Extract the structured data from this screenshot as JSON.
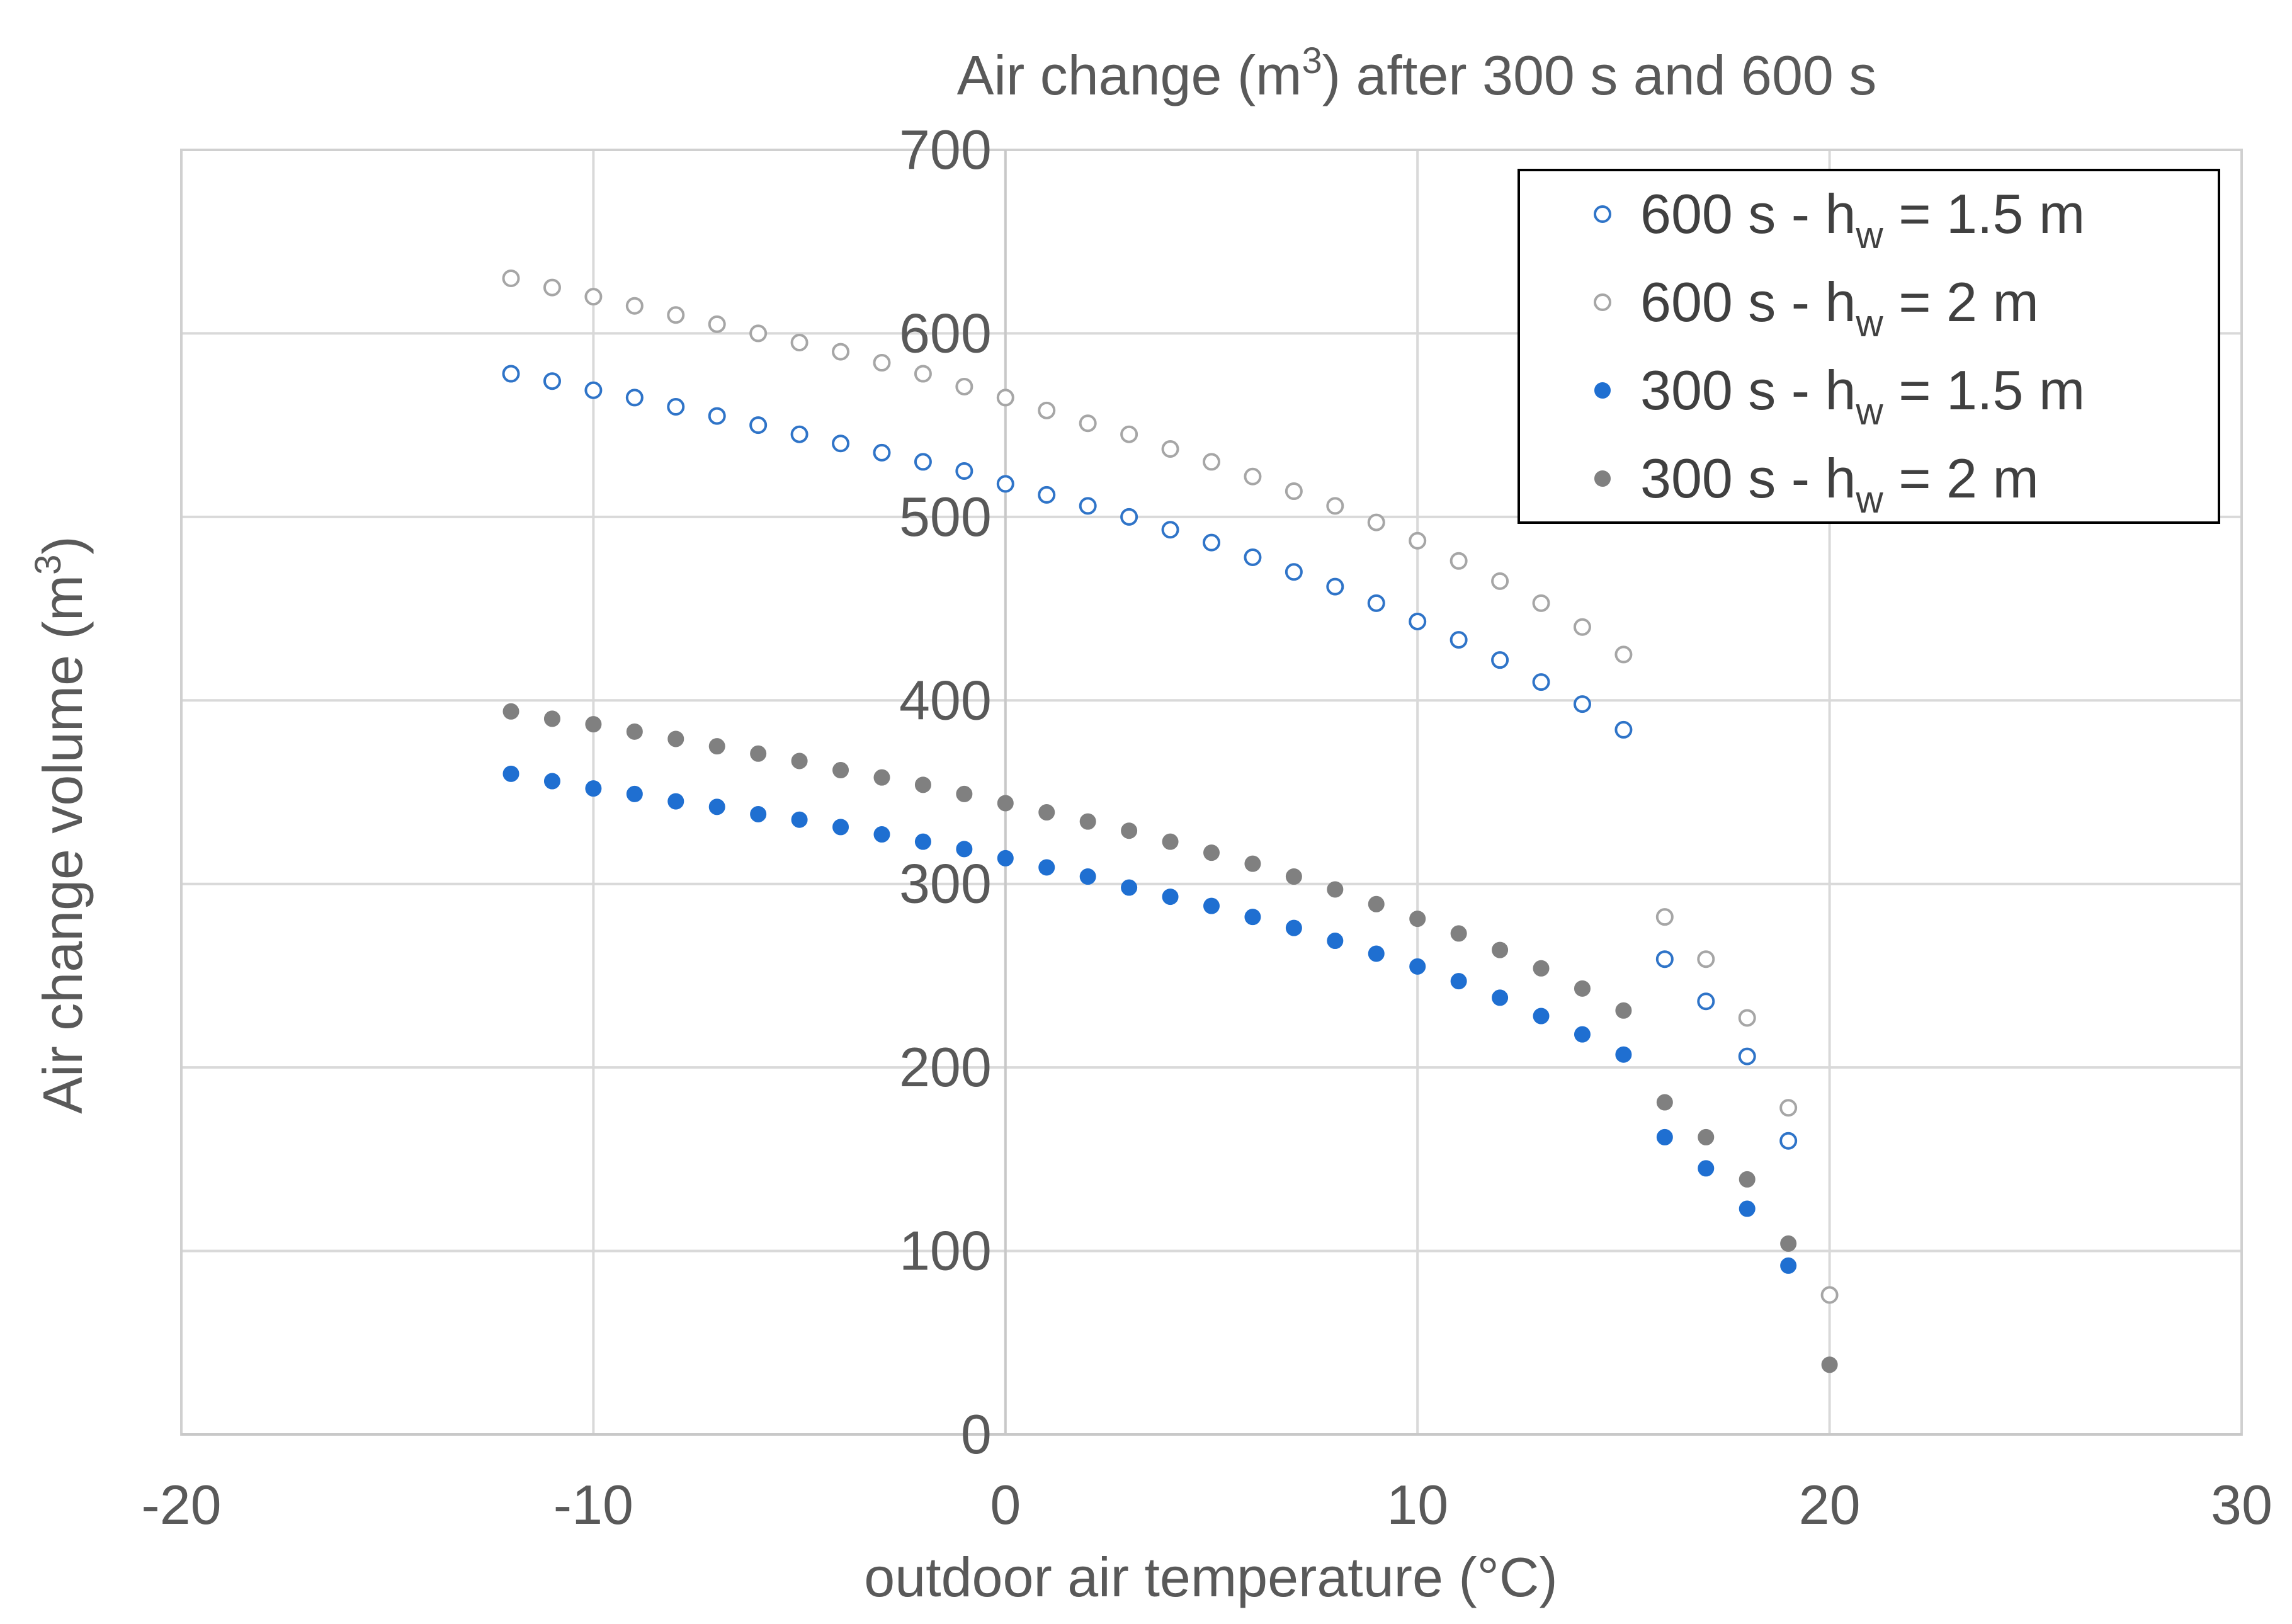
{
  "chart_data": {
    "type": "scatter",
    "title": {
      "prefix": "Air change (m",
      "superscript": "3",
      "suffix": ") after 300 s and 600 s"
    },
    "xlabel": "outdoor air temperature (°C)",
    "ylabel": {
      "prefix": "Air change volume (m",
      "superscript": "3",
      "suffix": ")"
    },
    "xlim": [
      -20,
      30
    ],
    "ylim": [
      0,
      700
    ],
    "xticks": [
      -20,
      -10,
      0,
      10,
      20,
      30
    ],
    "yticks": [
      0,
      100,
      200,
      300,
      400,
      500,
      600,
      700
    ],
    "grid": true,
    "legend_position": "top-right",
    "series": [
      {
        "name": "600 s - hw = 1.5 m",
        "label_parts": {
          "prefix": "600 s - h",
          "subscript": "w",
          "suffix": " = 1.5 m"
        },
        "marker": "open-circle",
        "color": "#2f74c8",
        "x": [
          -12,
          -11,
          -10,
          -9,
          -8,
          -7,
          -6,
          -5,
          -4,
          -3,
          -2,
          -1,
          0,
          1,
          2,
          3,
          4,
          5,
          6,
          7,
          8,
          9,
          10,
          11,
          12,
          13,
          14,
          15,
          16,
          17,
          18,
          19
        ],
        "y": [
          578,
          574,
          569,
          565,
          560,
          555,
          550,
          545,
          540,
          535,
          530,
          525,
          518,
          512,
          506,
          500,
          493,
          486,
          478,
          470,
          462,
          453,
          443,
          433,
          422,
          410,
          398,
          384,
          259,
          236,
          206,
          160
        ]
      },
      {
        "name": "600 s - hw = 2 m",
        "label_parts": {
          "prefix": "600 s - h",
          "subscript": "w",
          "suffix": " = 2 m"
        },
        "marker": "open-circle",
        "color": "#a6a6a6",
        "x": [
          -12,
          -11,
          -10,
          -9,
          -8,
          -7,
          -6,
          -5,
          -4,
          -3,
          -2,
          -1,
          0,
          1,
          2,
          3,
          4,
          5,
          6,
          7,
          8,
          9,
          10,
          11,
          12,
          13,
          14,
          15,
          16,
          17,
          18,
          19,
          20
        ],
        "y": [
          630,
          625,
          620,
          615,
          610,
          605,
          600,
          595,
          590,
          584,
          578,
          571,
          565,
          558,
          551,
          545,
          537,
          530,
          522,
          514,
          506,
          497,
          487,
          476,
          465,
          453,
          440,
          425,
          282,
          259,
          227,
          178,
          76
        ]
      },
      {
        "name": "300 s - hw = 1.5 m",
        "label_parts": {
          "prefix": "300 s - h",
          "subscript": "w",
          "suffix": " = 1.5 m"
        },
        "marker": "filled-circle",
        "color": "#1f6fd1",
        "x": [
          -12,
          -11,
          -10,
          -9,
          -8,
          -7,
          -6,
          -5,
          -4,
          -3,
          -2,
          -1,
          0,
          1,
          2,
          3,
          4,
          5,
          6,
          7,
          8,
          9,
          10,
          11,
          12,
          13,
          14,
          15,
          16,
          17,
          18,
          19
        ],
        "y": [
          360,
          356,
          352,
          349,
          345,
          342,
          338,
          335,
          331,
          327,
          323,
          319,
          314,
          309,
          304,
          298,
          293,
          288,
          282,
          276,
          269,
          262,
          255,
          247,
          238,
          228,
          218,
          207,
          162,
          145,
          123,
          92
        ]
      },
      {
        "name": "300 s - hw = 2 m",
        "label_parts": {
          "prefix": "300 s - h",
          "subscript": "w",
          "suffix": " = 2 m"
        },
        "marker": "filled-circle",
        "color": "#808080",
        "x": [
          -12,
          -11,
          -10,
          -9,
          -8,
          -7,
          -6,
          -5,
          -4,
          -3,
          -2,
          -1,
          0,
          1,
          2,
          3,
          4,
          5,
          6,
          7,
          8,
          9,
          10,
          11,
          12,
          13,
          14,
          15,
          16,
          17,
          18,
          19,
          20
        ],
        "y": [
          394,
          390,
          387,
          383,
          379,
          375,
          371,
          367,
          362,
          358,
          354,
          349,
          344,
          339,
          334,
          329,
          323,
          317,
          311,
          304,
          297,
          289,
          281,
          273,
          264,
          254,
          243,
          231,
          181,
          162,
          139,
          104,
          38
        ]
      }
    ]
  }
}
